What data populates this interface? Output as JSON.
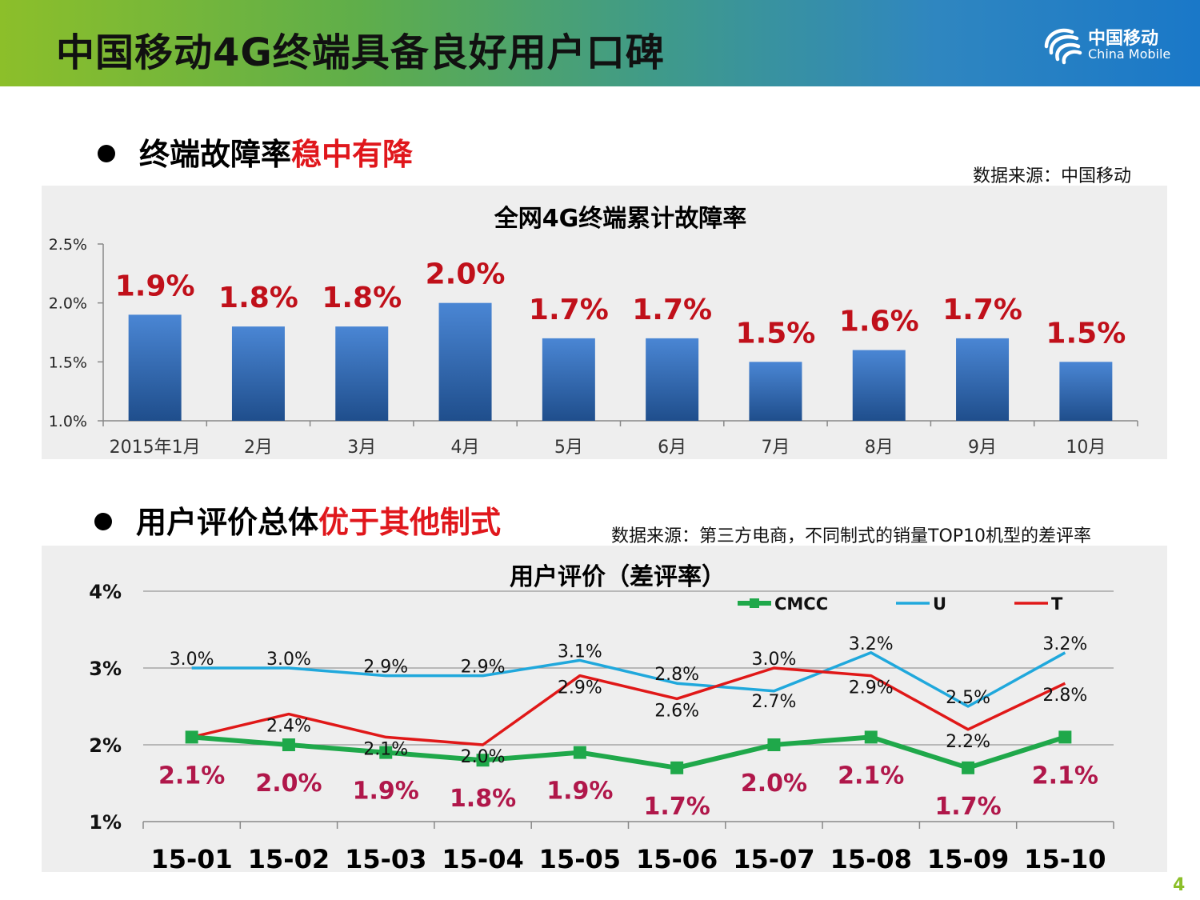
{
  "header": {
    "title": "中国移动4G终端具备良好用户口碑",
    "logo_cn": "中国移动",
    "logo_en": "China Mobile"
  },
  "section1": {
    "heading_prefix": "终端故障率",
    "heading_accent": "稳中有降",
    "source": "数据来源：中国移动"
  },
  "section2": {
    "heading_prefix": "用户评价总体",
    "heading_accent": "优于其他制式",
    "source": "数据来源：第三方电商，不同制式的销量TOP10机型的差评率"
  },
  "colors": {
    "bar": "#3c78c8",
    "bar_label": "#c0101a",
    "cmcc": "#1fa84a",
    "u": "#20a8dc",
    "t": "#e01818",
    "cmcc_label": "#b0174a",
    "accent": "#e0171c"
  },
  "chart_data": [
    {
      "type": "bar",
      "title": "全网4G终端累计故障率",
      "categories": [
        "2015年1月",
        "2月",
        "3月",
        "4月",
        "5月",
        "6月",
        "7月",
        "8月",
        "9月",
        "10月"
      ],
      "values": [
        1.9,
        1.8,
        1.8,
        2.0,
        1.7,
        1.7,
        1.5,
        1.6,
        1.7,
        1.5
      ],
      "data_labels": [
        "1.9%",
        "1.8%",
        "1.8%",
        "2.0%",
        "1.7%",
        "1.7%",
        "1.5%",
        "1.6%",
        "1.7%",
        "1.5%"
      ],
      "ylim": [
        1.0,
        2.5
      ],
      "yticks": [
        1.0,
        1.5,
        2.0,
        2.5
      ],
      "ytick_labels": [
        "1.0%",
        "1.5%",
        "2.0%",
        "2.5%"
      ],
      "xlabel": "",
      "ylabel": ""
    },
    {
      "type": "line",
      "title": "用户评价（差评率）",
      "categories": [
        "15-01",
        "15-02",
        "15-03",
        "15-04",
        "15-05",
        "15-06",
        "15-07",
        "15-08",
        "15-09",
        "15-10"
      ],
      "ylim": [
        1,
        4
      ],
      "yticks": [
        1,
        2,
        3,
        4
      ],
      "ytick_labels": [
        "1%",
        "2%",
        "3%",
        "4%"
      ],
      "legend_position": "top-right",
      "series": [
        {
          "name": "CMCC",
          "values": [
            2.1,
            2.0,
            1.9,
            1.8,
            1.9,
            1.7,
            2.0,
            2.1,
            1.7,
            2.1
          ],
          "labels": [
            "2.1%",
            "2.0%",
            "1.9%",
            "1.8%",
            "1.9%",
            "1.7%",
            "2.0%",
            "2.1%",
            "1.7%",
            "2.1%"
          ]
        },
        {
          "name": "U",
          "values": [
            3.0,
            3.0,
            2.9,
            2.9,
            3.1,
            2.8,
            2.7,
            3.2,
            2.5,
            3.2
          ],
          "labels": [
            "3.0%",
            "3.0%",
            "2.9%",
            "2.9%",
            "3.1%",
            "2.8%",
            "2.7%",
            "3.2%",
            "2.5%",
            "3.2%"
          ]
        },
        {
          "name": "T",
          "values": [
            2.1,
            2.4,
            2.1,
            2.0,
            2.9,
            2.6,
            3.0,
            2.9,
            2.2,
            2.8
          ],
          "labels": [
            "",
            "2.4%",
            "2.1%",
            "2.0%",
            "2.9%",
            "2.6%",
            "3.0%",
            "2.9%",
            "2.2%",
            "2.8%"
          ]
        }
      ]
    }
  ],
  "page_number": "4"
}
